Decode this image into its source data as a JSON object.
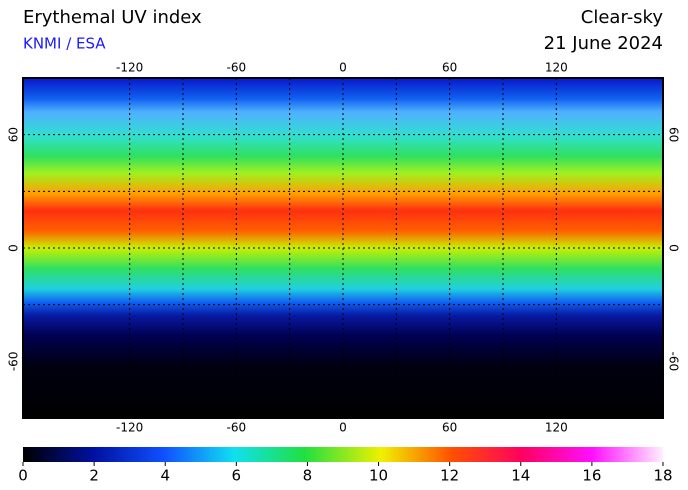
{
  "header": {
    "title": "Erythemal UV index",
    "source": "KNMI / ESA",
    "condition": "Clear-sky",
    "date": "21 June 2024"
  },
  "map": {
    "lon_range": [
      -180,
      180
    ],
    "lat_range": [
      -90,
      90
    ],
    "lon_ticks": [
      -120,
      -60,
      0,
      60,
      120
    ],
    "lat_ticks": [
      60,
      0,
      -60
    ]
  },
  "colorbar": {
    "range": [
      0,
      18
    ],
    "ticks": [
      0,
      2,
      4,
      6,
      8,
      10,
      12,
      14,
      16,
      18
    ]
  }
}
